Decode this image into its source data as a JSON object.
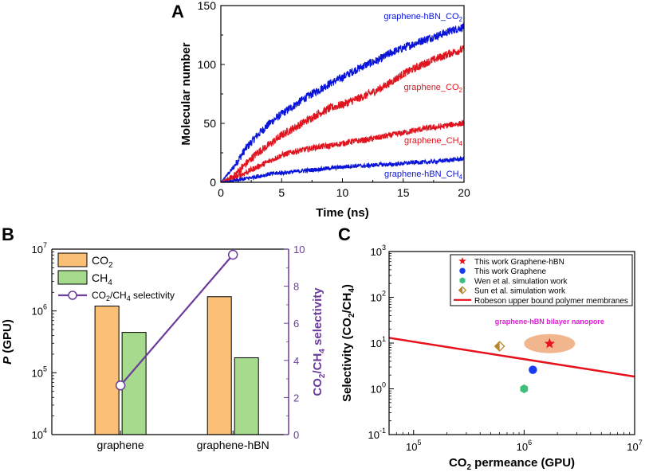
{
  "panels": {
    "A": {
      "label": "A"
    },
    "B": {
      "label": "B"
    },
    "C": {
      "label": "C"
    }
  },
  "colors": {
    "blue": "#0a14d8",
    "red": "#e0141e",
    "orange": "#fbbf76",
    "green": "#a6db8e",
    "purple": "#6a3c9c",
    "robeson": "#e8101a",
    "star": "#e8101a",
    "graphene": "#1a3cf0",
    "wen": "#3cbf7c",
    "sun": "#b8862a",
    "ellipse": "#f2b68e",
    "annot": "#e01ad8"
  },
  "chart_data": [
    {
      "id": "A",
      "type": "line",
      "title": "",
      "xlabel": "Time (ns)",
      "ylabel": "Molecular number",
      "xlim": [
        0,
        20
      ],
      "ylim": [
        0,
        150
      ],
      "xticks": [
        0,
        5,
        10,
        15,
        20
      ],
      "yticks": [
        0,
        50,
        100,
        150
      ],
      "series": [
        {
          "name": "graphene-hBN_CO",
          "sub": "2",
          "color": "#0a14d8",
          "noise": 3.5,
          "x": [
            0,
            1,
            2,
            3,
            4,
            5,
            6,
            7,
            8,
            9,
            10,
            11,
            12,
            13,
            14,
            15,
            16,
            17,
            18,
            19,
            20
          ],
          "y": [
            0,
            12,
            28,
            40,
            50,
            58,
            65,
            72,
            78,
            84,
            89,
            95,
            100,
            104,
            110,
            114,
            118,
            122,
            125,
            129,
            132
          ]
        },
        {
          "name": "graphene_CO",
          "sub": "2",
          "color": "#e0141e",
          "noise": 3.5,
          "x": [
            0,
            1,
            2,
            3,
            4,
            5,
            6,
            7,
            8,
            9,
            10,
            11,
            12,
            13,
            14,
            15,
            16,
            17,
            18,
            19,
            20
          ],
          "y": [
            0,
            5,
            15,
            25,
            32,
            40,
            46,
            52,
            58,
            63,
            66,
            70,
            74,
            79,
            85,
            92,
            97,
            102,
            106,
            110,
            113
          ]
        },
        {
          "name": "graphene_CH",
          "sub": "4",
          "color": "#e0141e",
          "noise": 2.5,
          "x": [
            0,
            1,
            2,
            3,
            4,
            5,
            6,
            7,
            8,
            9,
            10,
            11,
            12,
            13,
            14,
            15,
            16,
            17,
            18,
            19,
            20
          ],
          "y": [
            0,
            3,
            8,
            13,
            18,
            23,
            26,
            28,
            30,
            31,
            33,
            35,
            36,
            38,
            40,
            42,
            44,
            46,
            47,
            49,
            50
          ]
        },
        {
          "name": "graphene-hBN_CH",
          "sub": "4",
          "color": "#0a14d8",
          "noise": 1.8,
          "x": [
            0,
            1,
            2,
            3,
            4,
            5,
            6,
            7,
            8,
            9,
            10,
            11,
            12,
            13,
            14,
            15,
            16,
            17,
            18,
            19,
            20
          ],
          "y": [
            0,
            1,
            3,
            5,
            7,
            8,
            9,
            10,
            11,
            12,
            13,
            14,
            14,
            15,
            15,
            16,
            17,
            17,
            18,
            19,
            20
          ]
        }
      ]
    },
    {
      "id": "B",
      "type": "bar",
      "ylabel_left_italic": "P",
      "ylabel_left_rest": " (GPU)",
      "ylabel_right": "CO2/CH4 selectivity",
      "categories": [
        "graphene",
        "graphene-hBN"
      ],
      "yscale_left": "log",
      "ylim_left": [
        10000,
        10000000
      ],
      "yticks_left": [
        {
          "base": "10",
          "exp": "4"
        },
        {
          "base": "10",
          "exp": "5"
        },
        {
          "base": "10",
          "exp": "6"
        },
        {
          "base": "10",
          "exp": "7"
        }
      ],
      "ylim_right": [
        0,
        10
      ],
      "yticks_right": [
        "0",
        "2",
        "4",
        "6",
        "8",
        "10"
      ],
      "series": [
        {
          "name": "CO",
          "sub": "2",
          "color": "#fbbf76",
          "values": [
            1200000,
            1700000
          ]
        },
        {
          "name": "CH",
          "sub": "4",
          "color": "#a6db8e",
          "values": [
            450000,
            175000
          ]
        }
      ],
      "line_series": {
        "name": "CO2/CH4 selectivity",
        "color": "#6a3c9c",
        "values": [
          2.65,
          9.7
        ]
      },
      "legend": [
        "CO2",
        "CH4",
        "CO2/CH4 selectivity"
      ]
    },
    {
      "id": "C",
      "type": "scatter",
      "xlabel": "CO2 permeance (GPU)",
      "ylabel": "Selectivity (CO2/CH4)",
      "xscale": "log",
      "yscale": "log",
      "xlim": [
        60000,
        10000000
      ],
      "ylim": [
        0.1,
        1000
      ],
      "xticks": [
        {
          "base": "10",
          "exp": "5"
        },
        {
          "base": "10",
          "exp": "6"
        },
        {
          "base": "10",
          "exp": "7"
        }
      ],
      "yticks": [
        {
          "base": "10",
          "exp": "-1"
        },
        {
          "base": "10",
          "exp": "0"
        },
        {
          "base": "10",
          "exp": "1"
        },
        {
          "base": "10",
          "exp": "2"
        },
        {
          "base": "10",
          "exp": "3"
        }
      ],
      "points": [
        {
          "name": "This work Graphene-hBN",
          "x": 1700000,
          "y": 9.7,
          "marker": "star",
          "color": "#e8101a"
        },
        {
          "name": "This work Graphene",
          "x": 1200000,
          "y": 2.6,
          "marker": "circle",
          "color": "#1a3cf0"
        },
        {
          "name": "Wen et al. simulation work",
          "x": 1000000,
          "y": 1.0,
          "marker": "hexagon",
          "color": "#3cbf7c"
        },
        {
          "name": "Sun et al. simulation work",
          "x": 600000,
          "y": 8.5,
          "marker": "diamond",
          "color": "#b8862a"
        }
      ],
      "robeson": {
        "name": "Robeson upper bound polymer membranes",
        "x": [
          60000,
          10000000
        ],
        "y": [
          13,
          1.85
        ],
        "color": "#e8101a"
      },
      "annotation": "graphene-hBN bilayer nanopore"
    }
  ]
}
